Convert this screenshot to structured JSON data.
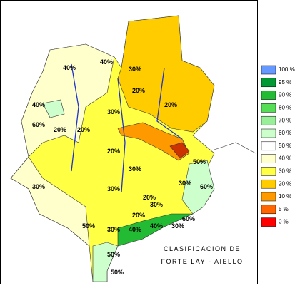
{
  "legend": {
    "items": [
      {
        "label": "100 %",
        "color": "#6699ff"
      },
      {
        "label": "95 %",
        "color": "#009933"
      },
      {
        "label": "90 %",
        "color": "#22bb33"
      },
      {
        "label": "80 %",
        "color": "#55dd55"
      },
      {
        "label": "70 %",
        "color": "#99ee99"
      },
      {
        "label": "60 %",
        "color": "#ccffcc"
      },
      {
        "label": "50 %",
        "color": "#ffffff"
      },
      {
        "label": "40 %",
        "color": "#ffffcc"
      },
      {
        "label": "30 %",
        "color": "#ffff44"
      },
      {
        "label": "20 %",
        "color": "#ffcc00"
      },
      {
        "label": "10 %",
        "color": "#ff9900"
      },
      {
        "label": "5 %",
        "color": "#ff6600"
      },
      {
        "label": "0 %",
        "color": "#ff0000"
      }
    ]
  },
  "map": {
    "contour_labels": [
      "40%",
      "30%",
      "40%",
      "60%",
      "40%",
      "30%",
      "20%",
      "20%",
      "30%",
      "20%",
      "20%",
      "20%",
      "30%",
      "20%",
      "30%",
      "20%",
      "30%",
      "50%",
      "60%",
      "30%",
      "40%",
      "30%",
      "50%",
      "30%",
      "40%",
      "50%",
      "60%",
      "50%"
    ],
    "caption": [
      "CLASIFICACION DE",
      "FORTE LAY - AIELLO"
    ]
  }
}
